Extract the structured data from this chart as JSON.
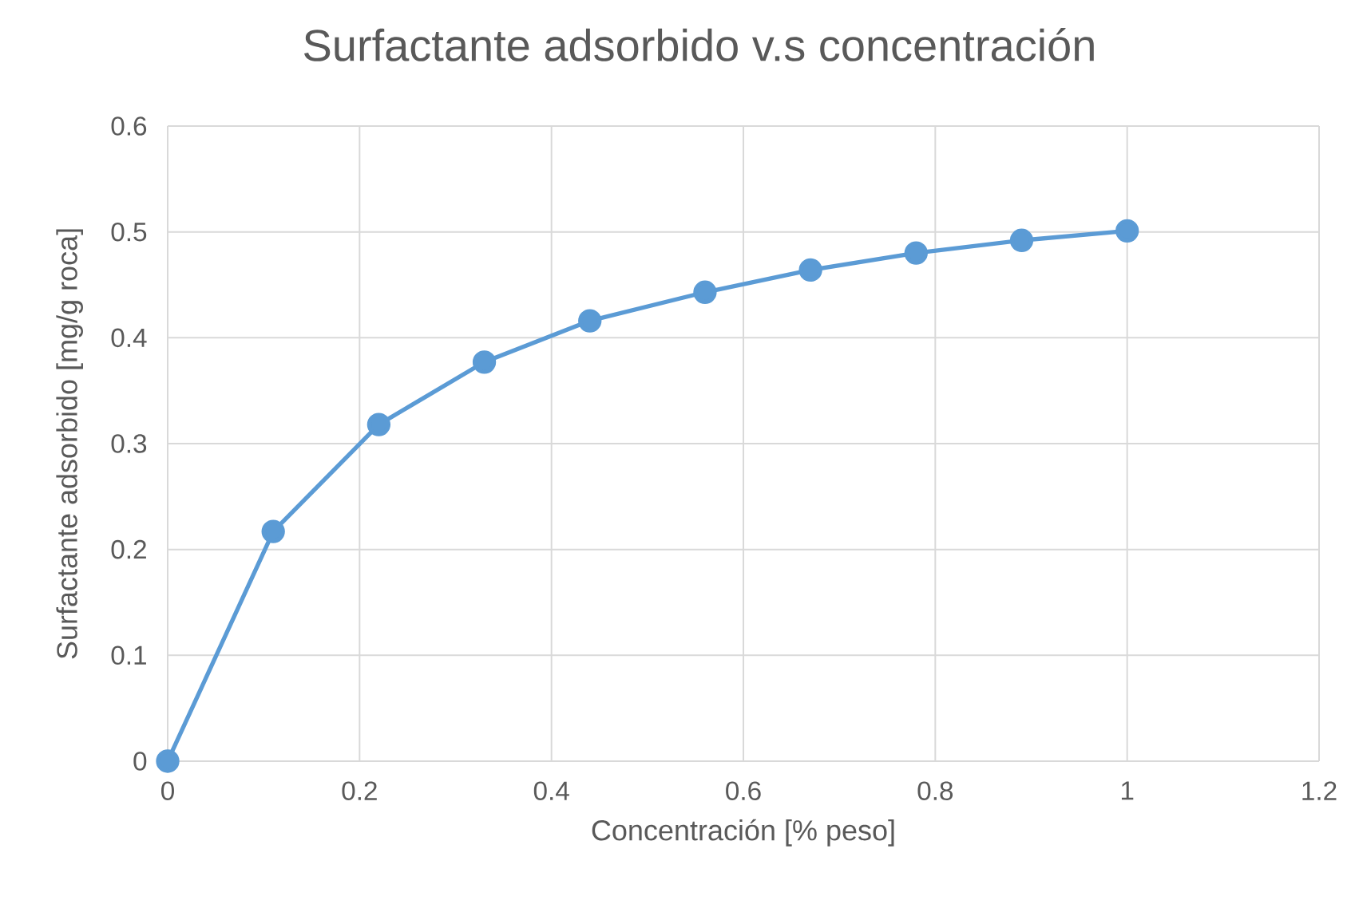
{
  "chart_data": {
    "type": "line",
    "title": "Surfactante adsorbido v.s concentración",
    "xlabel": "Concentración [% peso]",
    "ylabel": "Surfactante adsorbido [mg/g roca]",
    "x": [
      0,
      0.11,
      0.22,
      0.33,
      0.44,
      0.56,
      0.67,
      0.78,
      0.89,
      1
    ],
    "series": [
      {
        "color": "#5b9bd5",
        "values": [
          0,
          0.217,
          0.318,
          0.377,
          0.416,
          0.443,
          0.464,
          0.48,
          0.492,
          0.501
        ]
      }
    ],
    "xlim": [
      0,
      1.2
    ],
    "ylim": [
      0,
      0.6
    ],
    "xticks": [
      0,
      0.2,
      0.4,
      0.6,
      0.8,
      1,
      1.2
    ],
    "yticks": [
      0,
      0.1,
      0.2,
      0.3,
      0.4,
      0.5,
      0.6
    ],
    "grid": true,
    "marker": "circle",
    "line_style": "solid"
  }
}
